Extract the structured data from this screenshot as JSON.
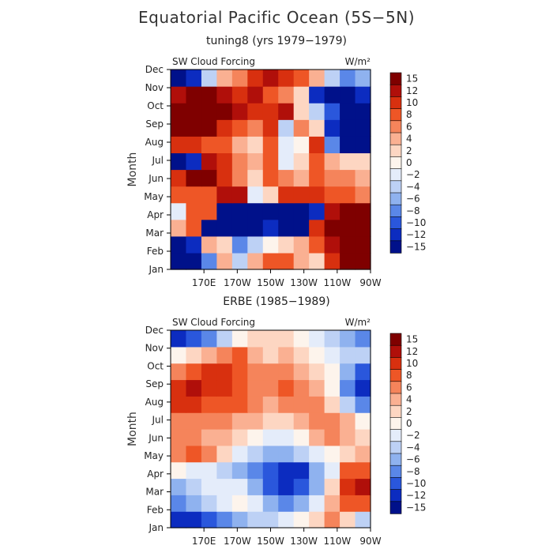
{
  "title": "Equatorial Pacific Ocean (5S−5N)",
  "colorbar": {
    "levels": [
      "15",
      "12",
      "10",
      "8",
      "6",
      "4",
      "2",
      "0",
      "−2",
      "−4",
      "−6",
      "−8",
      "−10",
      "−12",
      "−15"
    ],
    "colors": [
      "#7f0000",
      "#b00f0a",
      "#d8300f",
      "#ee5626",
      "#f5845b",
      "#fab092",
      "#fdd6c2",
      "#fdf4ec",
      "#e4ecfa",
      "#bdd1f5",
      "#8fb2ef",
      "#5a87e8",
      "#2a57dc",
      "#0c2cc0",
      "#00118a"
    ]
  },
  "chart_data": [
    {
      "type": "heatmap",
      "title": "tuning8 (yrs 1979−1979)",
      "left_label": "SW Cloud Forcing",
      "right_label": "W/m²",
      "xlabel": "",
      "ylabel": "Month",
      "x_ticks": [
        "170E",
        "170W",
        "150W",
        "130W",
        "110W",
        "90W"
      ],
      "y_ticks": [
        "Jan",
        "Feb",
        "Mar",
        "Apr",
        "May",
        "Jun",
        "Jul",
        "Aug",
        "Sep",
        "Oct",
        "Nov",
        "Dec"
      ],
      "x_range": [
        "150E",
        "90W"
      ],
      "y_range": [
        "Jan",
        "Dec"
      ],
      "units": "W/m²",
      "values": [
        [
          -15,
          -15,
          -8,
          4,
          -4,
          4,
          8,
          8,
          4,
          2,
          10,
          15,
          15
        ],
        [
          -15,
          -12,
          4,
          2,
          -8,
          -4,
          0,
          2,
          4,
          8,
          12,
          15,
          15
        ],
        [
          4,
          8,
          -15,
          -15,
          -15,
          -15,
          -12,
          -15,
          -15,
          10,
          15,
          15,
          15
        ],
        [
          -2,
          8,
          8,
          -15,
          -15,
          -15,
          -15,
          -15,
          -15,
          -12,
          12,
          15,
          15
        ],
        [
          8,
          8,
          8,
          12,
          12,
          -2,
          2,
          10,
          10,
          10,
          8,
          8,
          6
        ],
        [
          10,
          15,
          15,
          10,
          6,
          2,
          8,
          6,
          4,
          8,
          6,
          6,
          4
        ],
        [
          -15,
          -12,
          12,
          10,
          6,
          4,
          8,
          -2,
          2,
          8,
          4,
          2,
          2
        ],
        [
          10,
          10,
          8,
          8,
          4,
          2,
          8,
          -2,
          0,
          10,
          -8,
          -15,
          -15
        ],
        [
          15,
          15,
          15,
          10,
          8,
          6,
          10,
          -4,
          6,
          2,
          -12,
          -15,
          -15
        ],
        [
          15,
          15,
          15,
          15,
          12,
          10,
          10,
          12,
          2,
          -4,
          -10,
          -15,
          -15
        ],
        [
          12,
          15,
          15,
          12,
          10,
          12,
          8,
          6,
          2,
          -12,
          -15,
          -15,
          -12
        ],
        [
          -15,
          -12,
          -4,
          4,
          6,
          10,
          12,
          10,
          8,
          4,
          -4,
          -8,
          -6
        ]
      ]
    },
    {
      "type": "heatmap",
      "title": "ERBE (1985−1989)",
      "left_label": "SW Cloud Forcing",
      "right_label": "W/m²",
      "xlabel": "",
      "ylabel": "Month",
      "x_ticks": [
        "170E",
        "170W",
        "150W",
        "130W",
        "110W",
        "90W"
      ],
      "y_ticks": [
        "Jan",
        "Feb",
        "Mar",
        "Apr",
        "May",
        "Jun",
        "Jul",
        "Aug",
        "Sep",
        "Oct",
        "Nov",
        "Dec"
      ],
      "x_range": [
        "150E",
        "90W"
      ],
      "y_range": [
        "Jan",
        "Dec"
      ],
      "units": "W/m²",
      "values": [
        [
          -12,
          -12,
          -10,
          -8,
          -6,
          -4,
          -4,
          -2,
          0,
          2,
          6,
          2,
          -4
        ],
        [
          -8,
          -6,
          -4,
          -2,
          0,
          -2,
          -6,
          -8,
          -6,
          -2,
          4,
          8,
          8
        ],
        [
          -6,
          -4,
          -2,
          -2,
          -2,
          -6,
          -10,
          -12,
          -10,
          -6,
          2,
          10,
          12
        ],
        [
          0,
          -2,
          -2,
          -4,
          -6,
          -8,
          -10,
          -12,
          -12,
          -6,
          -2,
          8,
          8
        ],
        [
          6,
          8,
          6,
          2,
          -2,
          -4,
          -6,
          -6,
          -4,
          -2,
          0,
          2,
          4
        ],
        [
          6,
          6,
          4,
          4,
          2,
          0,
          -2,
          -2,
          0,
          4,
          6,
          4,
          2
        ],
        [
          6,
          6,
          6,
          6,
          4,
          4,
          2,
          2,
          4,
          6,
          6,
          4,
          0
        ],
        [
          10,
          10,
          8,
          8,
          8,
          6,
          4,
          6,
          6,
          6,
          2,
          -4,
          -8
        ],
        [
          10,
          12,
          10,
          10,
          8,
          6,
          6,
          8,
          6,
          4,
          0,
          -8,
          -12
        ],
        [
          6,
          8,
          10,
          10,
          8,
          6,
          6,
          6,
          4,
          2,
          0,
          -6,
          -10
        ],
        [
          0,
          2,
          4,
          6,
          8,
          4,
          2,
          4,
          2,
          0,
          -2,
          -4,
          -4
        ],
        [
          -12,
          -10,
          -8,
          -4,
          0,
          2,
          2,
          2,
          0,
          -2,
          -4,
          -6,
          -8
        ]
      ]
    }
  ]
}
